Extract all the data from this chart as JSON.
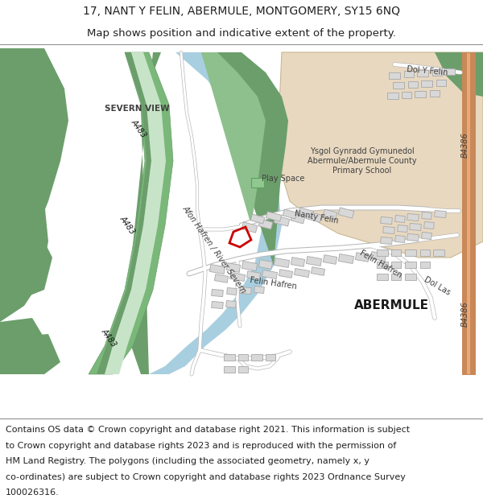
{
  "title_line1": "17, NANT Y FELIN, ABERMULE, MONTGOMERY, SY15 6NQ",
  "title_line2": "Map shows position and indicative extent of the property.",
  "footer_text": "Contains OS data © Crown copyright and database right 2021. This information is subject to Crown copyright and database rights 2023 and is reproduced with the permission of HM Land Registry. The polygons (including the associated geometry, namely x, y co-ordinates) are subject to Crown copyright and database rights 2023 Ordnance Survey 100026316.",
  "title_fontsize": 10,
  "subtitle_fontsize": 9.5,
  "footer_fontsize": 8.0,
  "map_bg": "#f2f0eb",
  "green_dark": "#6b9e6b",
  "green_mid": "#8dc08d",
  "green_light": "#b8d4b0",
  "river_color": "#a8cfe0",
  "river_bank": "#6ba0b8",
  "school_bg": "#e8d8c0",
  "road_a_color": "#7ab87a",
  "road_a_light": "#c8e4c8",
  "road_b_color": "#e8a878",
  "road_b_edge": "#c88858",
  "road_minor_color": "#ffffff",
  "road_minor_edge": "#b8b8b8",
  "building_fill": "#d8d8d8",
  "building_edge": "#a8a8a8",
  "plot_color": "#cc0000",
  "text_dark": "#202020",
  "text_mid": "#404040",
  "border_color": "#909090"
}
